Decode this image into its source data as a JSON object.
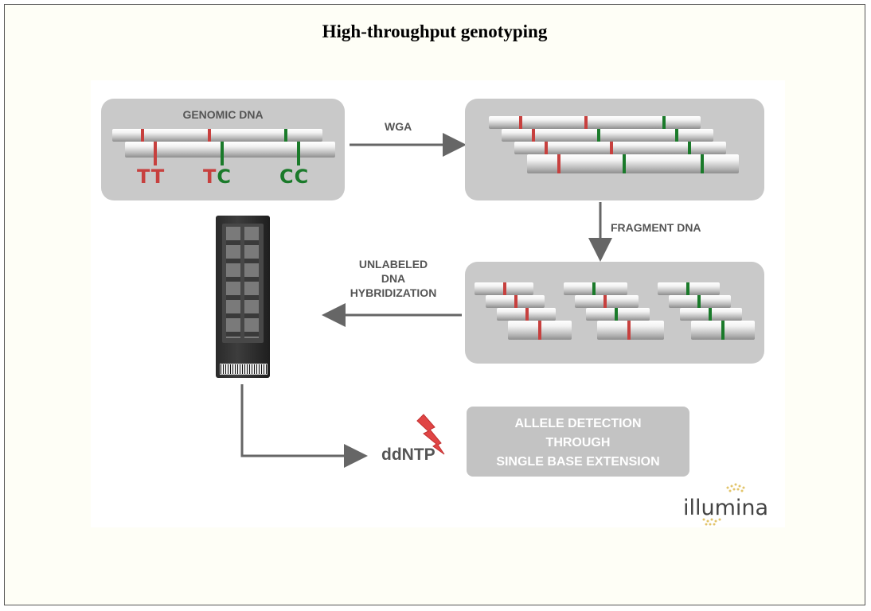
{
  "title": "High-throughput genotyping",
  "genomic": {
    "heading": "GENOMIC DNA",
    "genotypes": [
      {
        "letters": [
          {
            "char": "T",
            "color": "#c7403e"
          },
          {
            "char": "T",
            "color": "#c7403e"
          }
        ]
      },
      {
        "letters": [
          {
            "char": "T",
            "color": "#c7403e"
          },
          {
            "char": "C",
            "color": "#1a7a2a"
          }
        ]
      },
      {
        "letters": [
          {
            "char": "C",
            "color": "#1a7a2a"
          },
          {
            "char": "C",
            "color": "#1a7a2a"
          }
        ]
      }
    ]
  },
  "steps": {
    "wga": "WGA",
    "fragment": "FRAGMENT DNA",
    "hybridization": [
      "UNLABELED",
      "DNA",
      "HYBRIDIZATION"
    ],
    "ddntp": "ddNTP",
    "detection": [
      "ALLELE DETECTION",
      "THROUGH",
      "SINGLE BASE EXTENSION"
    ]
  },
  "brand": "illumina",
  "colors": {
    "allele_t": "#c7403e",
    "allele_c": "#1a7a2a",
    "panel": "#c9c9c9",
    "arrow": "#666666",
    "lightning": "#e04545"
  },
  "icons": [
    "lightning-icon",
    "beadchip-icon",
    "illumina-logo-icon"
  ]
}
